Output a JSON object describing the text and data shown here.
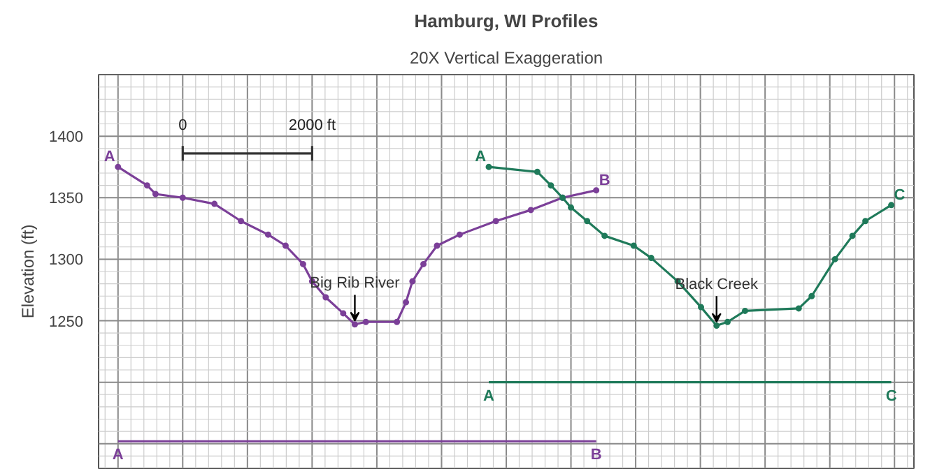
{
  "chart_data": {
    "type": "line",
    "title": "Hamburg, WI Profiles",
    "subtitle": "20X Vertical Exaggeration",
    "ylabel": "Elevation (ft)",
    "xlim": [
      -1300,
      11300
    ],
    "ylim": [
      1130,
      1450
    ],
    "xticks": [
      0,
      {
        "value": 2000,
        "label": "2000 ft"
      }
    ],
    "yticks": [
      1250,
      1300,
      1350,
      1400
    ],
    "grid": true,
    "marker": "circle",
    "line_style": "solid",
    "series": [
      {
        "color": "#7b3f98",
        "x": [
          -1000,
          -550,
          -420,
          0,
          490,
          900,
          1320,
          1590,
          1860,
          2000,
          2210,
          2480,
          2660,
          2830,
          3310,
          3450,
          3550,
          3720,
          3930,
          4280,
          4840,
          5380,
          5870,
          6390
        ],
        "values": [
          1375,
          1360,
          1353,
          1350,
          1345,
          1331,
          1320,
          1311,
          1296,
          1282,
          1269,
          1256,
          1247,
          1249,
          1249,
          1265,
          1282,
          1296,
          1311,
          1320,
          1331,
          1340,
          1350,
          1356
        ]
      },
      {
        "color": "#1f7a5a",
        "x": [
          4730,
          5480,
          5690,
          5870,
          6000,
          6250,
          6520,
          6970,
          7240,
          7650,
          8010,
          8250,
          8420,
          8690,
          9520,
          9720,
          10080,
          10350,
          10550,
          10950
        ],
        "values": [
          1375,
          1371,
          1360,
          1350,
          1342,
          1331,
          1319,
          1311,
          1301,
          1282,
          1261,
          1246,
          1249,
          1258,
          1260,
          1270,
          1300,
          1319,
          1331,
          1344
        ]
      },
      {
        "color": "#7b3f98",
        "marker": "none",
        "x": [
          -1000,
          6390
        ],
        "values": [
          1152,
          1152
        ]
      },
      {
        "color": "#1f7a5a",
        "marker": "none",
        "x": [
          4730,
          10950
        ],
        "values": [
          1200,
          1200
        ]
      },
      {
        "color": "#333333",
        "marker": "none",
        "x": [
          0,
          2000
        ],
        "values": [
          1386,
          1386
        ],
        "errors": [
          6,
          6
        ]
      }
    ],
    "annotations": [
      {
        "text": "Big Rib River",
        "x": 2660,
        "y": 1247
      },
      {
        "text": "Black Creek",
        "x": 8250,
        "y": 1246
      },
      {
        "text": "A",
        "x": -1000,
        "y": 1375
      },
      {
        "text": "B",
        "x": 6390,
        "y": 1356
      },
      {
        "text": "A",
        "x": 4730,
        "y": 1375
      },
      {
        "text": "C",
        "x": 10950,
        "y": 1344
      },
      {
        "text": "A",
        "x": -1000,
        "y": 1152
      },
      {
        "text": "B",
        "x": 6390,
        "y": 1152
      },
      {
        "text": "A",
        "x": 4730,
        "y": 1200
      },
      {
        "text": "C",
        "x": 10950,
        "y": 1200
      }
    ]
  }
}
